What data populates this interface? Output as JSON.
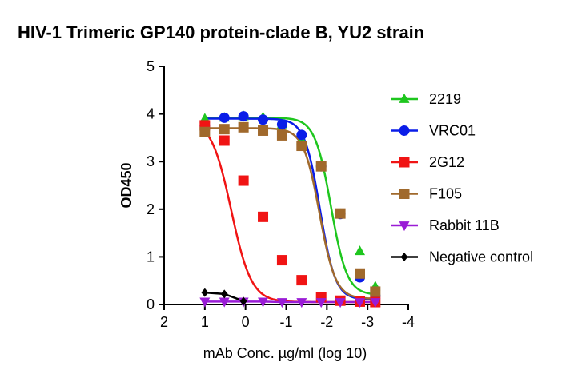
{
  "chart_data": {
    "type": "line",
    "title": "HIV-1 Trimeric GP140 protein-clade B, YU2 strain",
    "xlabel": "mAb Conc. µg/ml (log 10)",
    "ylabel": "OD450",
    "xlim": [
      2,
      -4
    ],
    "ylim": [
      0,
      5
    ],
    "x_ticks": [
      2,
      1,
      0,
      -1,
      -2,
      -3,
      -4
    ],
    "x_tick_labels": [
      "2",
      "1",
      "0",
      "-1",
      "-2",
      "-3",
      "-4"
    ],
    "y_ticks": [
      0,
      1,
      2,
      3,
      4,
      5
    ],
    "y_tick_labels": [
      "0",
      "1",
      "2",
      "3",
      "4",
      "5"
    ],
    "grid": false,
    "legend_position": "right",
    "series": [
      {
        "name": "2219",
        "color": "#1ec61e",
        "marker": "triangle-up",
        "x": [
          1,
          0.52,
          0.05,
          -0.43,
          -0.9,
          -1.38,
          -1.86,
          -2.33,
          -2.81,
          -3.19
        ],
        "y": [
          3.9,
          3.92,
          3.95,
          3.93,
          3.78,
          3.45,
          2.88,
          1.9,
          1.12,
          0.38
        ],
        "fit": {
          "bottom": 0.2,
          "top": 3.92,
          "x50": -2.1,
          "slope": 2.2
        }
      },
      {
        "name": "VRC01",
        "color": "#0a1de8",
        "marker": "circle",
        "x": [
          1,
          0.52,
          0.05,
          -0.43,
          -0.9,
          -1.38,
          -1.86,
          -2.33,
          -2.81,
          -3.19
        ],
        "y": [
          3.75,
          3.92,
          3.95,
          3.88,
          3.78,
          3.56,
          2.9,
          1.9,
          0.57,
          0.18
        ],
        "fit": {
          "bottom": 0.1,
          "top": 3.9,
          "x50": -1.83,
          "slope": 2.3
        }
      },
      {
        "name": "2G12",
        "color": "#f01414",
        "marker": "square",
        "x": [
          1,
          0.52,
          0.05,
          -0.43,
          -0.9,
          -1.38,
          -1.86,
          -2.33,
          -2.81,
          -3.19
        ],
        "y": [
          3.76,
          3.44,
          2.6,
          1.84,
          0.93,
          0.51,
          0.15,
          0.08,
          0.06,
          0.05
        ],
        "fit": {
          "bottom": 0.05,
          "top": 3.9,
          "x50": 0.35,
          "slope": 1.75
        }
      },
      {
        "name": "F105",
        "color": "#a0692c",
        "marker": "square",
        "x": [
          1,
          0.52,
          0.05,
          -0.43,
          -0.9,
          -1.38,
          -1.86,
          -2.33,
          -2.81,
          -3.19
        ],
        "y": [
          3.62,
          3.68,
          3.72,
          3.65,
          3.55,
          3.33,
          2.9,
          1.91,
          0.65,
          0.27
        ],
        "fit": {
          "bottom": 0.12,
          "top": 3.7,
          "x50": -1.82,
          "slope": 2.2
        }
      },
      {
        "name": "Rabbit 11B",
        "color": "#9a1cd6",
        "marker": "triangle-down",
        "x": [
          1,
          0.52,
          0.05,
          -0.43,
          -0.9,
          -1.38,
          -1.86,
          -2.33,
          -2.81,
          -3.19
        ],
        "y": [
          0.06,
          0.06,
          0.06,
          0.06,
          0.05,
          0.05,
          0.05,
          0.05,
          0.05,
          0.05
        ],
        "fit": null
      },
      {
        "name": "Negative control",
        "color": "#000000",
        "marker": "diamond",
        "x": [
          1,
          0.52,
          0.05
        ],
        "y": [
          0.25,
          0.22,
          0.07
        ],
        "fit": null
      }
    ]
  }
}
